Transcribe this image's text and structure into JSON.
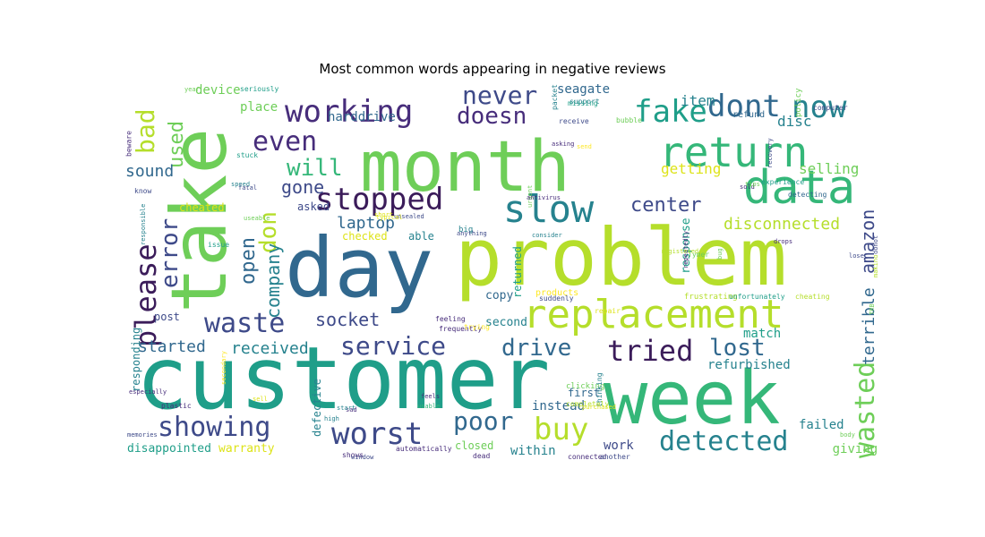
{
  "title": "Most common words appearing in negative reviews",
  "palette": {
    "purple": "#472d7b",
    "dark_purple": "#3b1c5a",
    "navy": "#3e4a89",
    "blue": "#31688e",
    "teal": "#26828e",
    "teal_green": "#1f9e89",
    "green": "#35b779",
    "light_green": "#6ece58",
    "yellow_green": "#b5de2b",
    "yellow": "#dde318",
    "bright_yellow": "#fde725"
  },
  "words": [
    {
      "text": "customer",
      "color": "#1f9e89"
    },
    {
      "text": "problem",
      "color": "#b5de2b"
    },
    {
      "text": "day",
      "color": "#31688e"
    },
    {
      "text": "month",
      "color": "#6ece58"
    },
    {
      "text": "take",
      "color": "#6ece58"
    },
    {
      "text": "week",
      "color": "#35b779"
    },
    {
      "text": "replacement",
      "color": "#b5de2b"
    },
    {
      "text": "return",
      "color": "#35b779"
    },
    {
      "text": "data",
      "color": "#35b779"
    },
    {
      "text": "slow",
      "color": "#26828e"
    },
    {
      "text": "working",
      "color": "#472d7b"
    },
    {
      "text": "fake",
      "color": "#1f9e89"
    },
    {
      "text": "dont",
      "color": "#31688e"
    },
    {
      "text": "now",
      "color": "#26828e"
    },
    {
      "text": "never",
      "color": "#3e4a89"
    },
    {
      "text": "doesn",
      "color": "#472d7b"
    },
    {
      "text": "even",
      "color": "#472d7b"
    },
    {
      "text": "stopped",
      "color": "#3b1c5a"
    },
    {
      "text": "will",
      "color": "#35b779"
    },
    {
      "text": "don",
      "color": "#b5de2b"
    },
    {
      "text": "used",
      "color": "#6ece58"
    },
    {
      "text": "bad",
      "color": "#b5de2b"
    },
    {
      "text": "please",
      "color": "#3b1c5a"
    },
    {
      "text": "error",
      "color": "#3e4a89"
    },
    {
      "text": "waste",
      "color": "#3e4a89"
    },
    {
      "text": "open",
      "color": "#31688e"
    },
    {
      "text": "company",
      "color": "#26828e"
    },
    {
      "text": "service",
      "color": "#3e4a89"
    },
    {
      "text": "socket",
      "color": "#3e4a89"
    },
    {
      "text": "showing",
      "color": "#3e4a89"
    },
    {
      "text": "worst",
      "color": "#3e4a89"
    },
    {
      "text": "poor",
      "color": "#31688e"
    },
    {
      "text": "buy",
      "color": "#b5de2b"
    },
    {
      "text": "detected",
      "color": "#26828e"
    },
    {
      "text": "wasted",
      "color": "#6ece58"
    },
    {
      "text": "tried",
      "color": "#3b1c5a"
    },
    {
      "text": "lost",
      "color": "#31688e"
    },
    {
      "text": "drive",
      "color": "#31688e"
    },
    {
      "text": "center",
      "color": "#3e4a89"
    },
    {
      "text": "laptop",
      "color": "#31688e"
    },
    {
      "text": "gone",
      "color": "#3e4a89"
    },
    {
      "text": "sound",
      "color": "#31688e"
    },
    {
      "text": "started",
      "color": "#31688e"
    },
    {
      "text": "received",
      "color": "#26828e"
    },
    {
      "text": "amazon",
      "color": "#3e4a89"
    },
    {
      "text": "terrible",
      "color": "#31688e"
    },
    {
      "text": "disconnected",
      "color": "#b5de2b"
    },
    {
      "text": "getting",
      "color": "#dde318"
    },
    {
      "text": "selling",
      "color": "#6ece58"
    },
    {
      "text": "item",
      "color": "#26828e"
    },
    {
      "text": "disc",
      "color": "#26828e"
    },
    {
      "text": "seagate",
      "color": "#31688e"
    },
    {
      "text": "harddrive",
      "color": "#31688e"
    },
    {
      "text": "place",
      "color": "#6ece58"
    },
    {
      "text": "device",
      "color": "#6ece58"
    },
    {
      "text": "refund",
      "color": "#31688e"
    },
    {
      "text": "policy",
      "color": "#6ece58"
    },
    {
      "text": "work",
      "color": "#3e4a89"
    },
    {
      "text": "within",
      "color": "#26828e"
    },
    {
      "text": "instead",
      "color": "#31688e"
    },
    {
      "text": "refurbished",
      "color": "#26828e"
    },
    {
      "text": "failed",
      "color": "#26828e"
    },
    {
      "text": "giving",
      "color": "#6ece58"
    },
    {
      "text": "match",
      "color": "#1f9e89"
    },
    {
      "text": "disappointed",
      "color": "#1f9e89"
    },
    {
      "text": "warranty",
      "color": "#dde318"
    },
    {
      "text": "defective",
      "color": "#26828e"
    },
    {
      "text": "copy",
      "color": "#31688e"
    },
    {
      "text": "second",
      "color": "#26828e"
    },
    {
      "text": "returned",
      "color": "#1f9e89"
    },
    {
      "text": "response",
      "color": "#1f9e89"
    },
    {
      "text": "post",
      "color": "#3e4a89"
    },
    {
      "text": "asked",
      "color": "#3e4a89"
    },
    {
      "text": "able",
      "color": "#26828e"
    },
    {
      "text": "checked",
      "color": "#dde318"
    },
    {
      "text": "cheated",
      "color": "#dde318"
    },
    {
      "text": "responding",
      "color": "#26828e"
    },
    {
      "text": "closed",
      "color": "#6ece58"
    },
    {
      "text": "products",
      "color": "#fde725"
    },
    {
      "text": "first",
      "color": "#31688e"
    },
    {
      "text": "big",
      "color": "#26828e"
    },
    {
      "text": "clicking",
      "color": "#6ece58"
    },
    {
      "text": "frustrating",
      "color": "#b5de2b"
    },
    {
      "text": "unfortunately",
      "color": "#1f9e89"
    },
    {
      "text": "cheating",
      "color": "#b5de2b"
    },
    {
      "text": "completely",
      "color": "#b5de2b"
    },
    {
      "text": "thinking",
      "color": "#26828e"
    },
    {
      "text": "feeling",
      "color": "#472d7b"
    },
    {
      "text": "frequently",
      "color": "#472d7b"
    },
    {
      "text": "trying",
      "color": "#fde725"
    },
    {
      "text": "detecting",
      "color": "#31688e"
    },
    {
      "text": "experience",
      "color": "#1f9e89"
    },
    {
      "text": "packet",
      "color": "#26828e"
    },
    {
      "text": "support",
      "color": "#26828e"
    },
    {
      "text": "suddenly",
      "color": "#3e4a89"
    },
    {
      "text": "repair",
      "color": "#dde318"
    },
    {
      "text": "computer",
      "color": "#3e4a89"
    },
    {
      "text": "receive",
      "color": "#3e4a89"
    },
    {
      "text": "bubble",
      "color": "#6ece58"
    },
    {
      "text": "missing",
      "color": "#1f9e89"
    },
    {
      "text": "seriously",
      "color": "#1f9e89"
    },
    {
      "text": "beware",
      "color": "#472d7b"
    },
    {
      "text": "stuck",
      "color": "#1f9e89"
    },
    {
      "text": "know",
      "color": "#3e4a89"
    },
    {
      "text": "issue",
      "color": "#1f9e89"
    },
    {
      "text": "plastic",
      "color": "#472d7b"
    },
    {
      "text": "shows",
      "color": "#472d7b"
    },
    {
      "text": "automatically",
      "color": "#472d7b"
    },
    {
      "text": "dead",
      "color": "#472d7b"
    },
    {
      "text": "connected",
      "color": "#472d7b"
    },
    {
      "text": "another",
      "color": "#3e4a89"
    },
    {
      "text": "anything",
      "color": "#3e4a89"
    },
    {
      "text": "consider",
      "color": "#26828e"
    },
    {
      "text": "urgent",
      "color": "#6ece58"
    },
    {
      "text": "antivirus",
      "color": "#472d7b"
    },
    {
      "text": "recovery",
      "color": "#3e4a89"
    },
    {
      "text": "purchased",
      "color": "#dde318"
    },
    {
      "text": "body",
      "color": "#6ece58"
    },
    {
      "text": "drops",
      "color": "#472d7b"
    },
    {
      "text": "feels",
      "color": "#472d7b"
    },
    {
      "text": "usable",
      "color": "#35b779"
    },
    {
      "text": "unsealed",
      "color": "#3e4a89"
    },
    {
      "text": "typical",
      "color": "#dde318"
    },
    {
      "text": "Tymer",
      "color": "#6ece58"
    },
    {
      "text": "repeatedly",
      "color": "#472d7b"
    },
    {
      "text": "registered",
      "color": "#b5de2b"
    },
    {
      "text": "donot",
      "color": "#3e4a89"
    },
    {
      "text": "making",
      "color": "#b5de2b"
    },
    {
      "text": "asking",
      "color": "#472d7b"
    },
    {
      "text": "send",
      "color": "#fde725"
    },
    {
      "text": "sold",
      "color": "#472d7b"
    },
    {
      "text": "fatal",
      "color": "#3e4a89"
    },
    {
      "text": "useable",
      "color": "#6ece58"
    },
    {
      "text": "high",
      "color": "#26828e"
    },
    {
      "text": "bug",
      "color": "#6ece58"
    },
    {
      "text": "TRB",
      "color": "#6ece58"
    },
    {
      "text": "lose",
      "color": "#3e4a89"
    },
    {
      "text": "sad",
      "color": "#472d7b"
    },
    {
      "text": "short",
      "color": "#dde318"
    },
    {
      "text": "year",
      "color": "#6ece58"
    },
    {
      "text": "especially",
      "color": "#472d7b"
    },
    {
      "text": "responsible",
      "color": "#26828e"
    },
    {
      "text": "secondary",
      "color": "#fde725"
    },
    {
      "text": "window",
      "color": "#3e4a89"
    },
    {
      "text": "memories",
      "color": "#3e4a89"
    },
    {
      "text": "tips",
      "color": "#6ece58"
    },
    {
      "text": "speed",
      "color": "#26828e"
    },
    {
      "text": "sell",
      "color": "#dde318"
    },
    {
      "text": "start",
      "color": "#26828e"
    }
  ]
}
